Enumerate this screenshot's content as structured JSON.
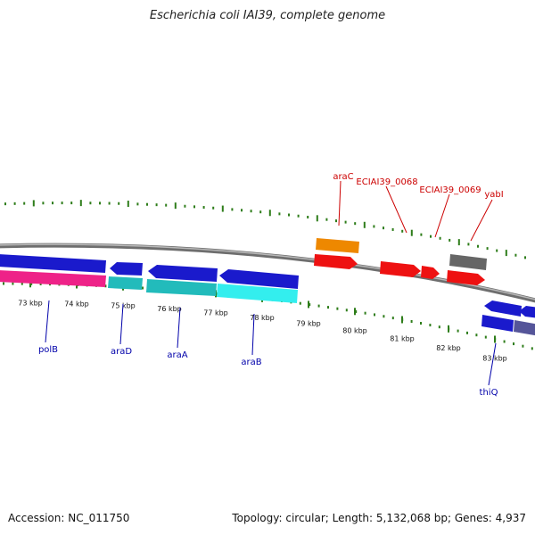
{
  "title": "Escherichia coli IAI39, complete genome",
  "footer": {
    "accession": "Accession: NC_011750",
    "summary": "Topology: circular; Length: 5,132,068 bp; Genes: 4,937"
  },
  "colors": {
    "background": "#ffffff",
    "tick_green": "#2e7d1a",
    "backbone_gray": "#8a8a8a",
    "label_blue": "#0000aa",
    "label_red": "#cc0000",
    "gene_blue": "#1a1acc",
    "gene_red": "#ee1111",
    "gene_orange": "#ee8800",
    "gene_gray": "#666666",
    "gene_pink": "#ee2288",
    "gene_cyan": "#22cccc"
  },
  "kbp_labels": [
    "73 kbp",
    "74 kbp",
    "75 kbp",
    "76 kbp",
    "77 kbp",
    "78 kbp",
    "79 kbp",
    "80 kbp",
    "81 kbp",
    "82 kbp",
    "83 kbp"
  ],
  "gene_labels": {
    "polB": "polB",
    "araD": "araD",
    "araA": "araA",
    "araB": "araB",
    "thiQ": "thiQ",
    "araC": "araC",
    "ECIAI39_0068": "ECIAI39_0068",
    "ECIAI39_0069": "ECIAI39_0069",
    "yabI": "yabI"
  }
}
